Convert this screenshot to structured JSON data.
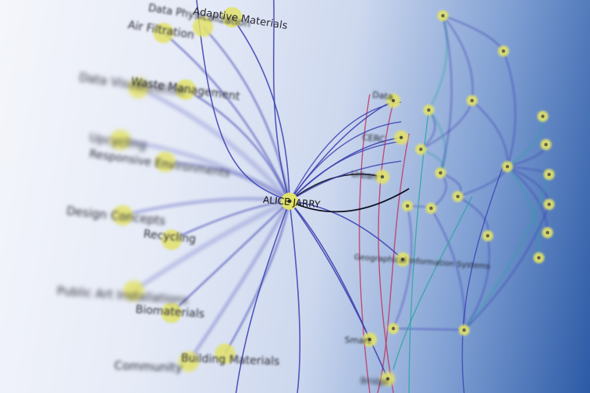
{
  "graph": {
    "center": {
      "label": "ALICE JARRY"
    },
    "left_nodes": [
      {
        "label": "Adaptive Materials"
      },
      {
        "label": "Data Physicalization"
      },
      {
        "label": "Air Filtration"
      },
      {
        "label": "Data Visualization"
      },
      {
        "label": "Waste Management"
      },
      {
        "label": "Upcycling"
      },
      {
        "label": "Responsive Environments"
      },
      {
        "label": "Design Concepts"
      },
      {
        "label": "Recycling"
      },
      {
        "label": "Public Art Installations"
      },
      {
        "label": "Biomaterials"
      },
      {
        "label": "Community"
      },
      {
        "label": "Building Materials"
      }
    ],
    "right_nodes": [
      {
        "label": "Data"
      },
      {
        "label": "CERC"
      },
      {
        "label": "Urban"
      },
      {
        "label": "Geographical Information Systems"
      },
      {
        "label": "Smart"
      },
      {
        "label": "Bridge"
      }
    ]
  },
  "colors": {
    "node_fill": "#e2e26a",
    "edge_blue": "#3b3fb0",
    "edge_red": "#c2305a",
    "edge_teal": "#2aa6a0",
    "highlight_edge": "#101020"
  }
}
